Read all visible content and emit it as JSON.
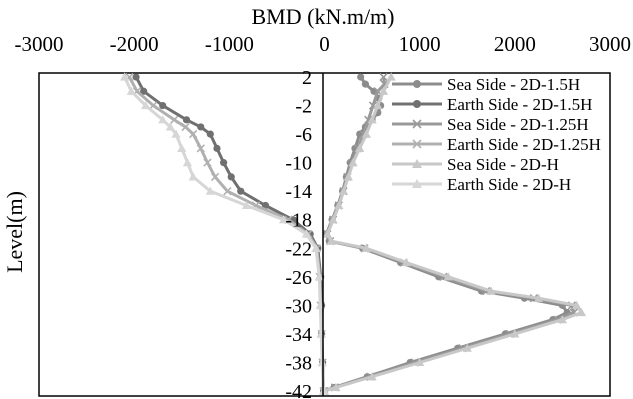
{
  "chart_data": {
    "type": "line",
    "title": "BMD (kN.m/m)",
    "xlabel": "BMD (kN.m/m)",
    "ylabel": "Level(m)",
    "xlim": [
      -3000,
      3000
    ],
    "ylim": [
      -42,
      4
    ],
    "x_ticks": [
      "-3000",
      "-2000",
      "-1000",
      "0",
      "1000",
      "2000",
      "3000"
    ],
    "y_ticks": [
      "2",
      "-2",
      "-6",
      "-10",
      "-14",
      "-18",
      "-22",
      "-26",
      "-30",
      "-34",
      "-38",
      "-42"
    ],
    "grid": false,
    "legend_position": "top-right",
    "series": [
      {
        "name": "Sea Side - 2D-1.5H",
        "color": "#8c8c8c",
        "marker": "circle",
        "points": [
          [
            380,
            2
          ],
          [
            430,
            1
          ],
          [
            520,
            0
          ],
          [
            570,
            -1
          ],
          [
            590,
            -2
          ],
          [
            560,
            -3
          ],
          [
            500,
            -4
          ],
          [
            430,
            -5
          ],
          [
            370,
            -6
          ],
          [
            320,
            -8
          ],
          [
            270,
            -10
          ],
          [
            230,
            -12
          ],
          [
            190,
            -14
          ],
          [
            140,
            -16
          ],
          [
            80,
            -18
          ],
          [
            20,
            -20
          ],
          [
            50,
            -21
          ],
          [
            400,
            -22
          ],
          [
            800,
            -24
          ],
          [
            1200,
            -26
          ],
          [
            1650,
            -28
          ],
          [
            2100,
            -29
          ],
          [
            2500,
            -30
          ],
          [
            2550,
            -31
          ],
          [
            2400,
            -32
          ],
          [
            1900,
            -34
          ],
          [
            1400,
            -36
          ],
          [
            900,
            -38
          ],
          [
            450,
            -40
          ],
          [
            100,
            -41.5
          ],
          [
            0,
            -42
          ]
        ]
      },
      {
        "name": "Earth Side - 2D-1.5H",
        "color": "#707070",
        "marker": "circle",
        "points": [
          [
            -1980,
            2
          ],
          [
            -1900,
            0
          ],
          [
            -1700,
            -2
          ],
          [
            -1450,
            -4
          ],
          [
            -1300,
            -5
          ],
          [
            -1200,
            -6
          ],
          [
            -1130,
            -8
          ],
          [
            -1060,
            -10
          ],
          [
            -980,
            -12
          ],
          [
            -880,
            -14
          ],
          [
            -620,
            -16
          ],
          [
            -330,
            -18
          ],
          [
            -150,
            -20
          ],
          [
            -70,
            -22
          ],
          [
            -40,
            -26
          ],
          [
            -30,
            -30
          ],
          [
            -30,
            -34
          ],
          [
            -20,
            -38
          ],
          [
            -10,
            -42
          ]
        ]
      },
      {
        "name": "Sea Side - 2D-1.25H",
        "color": "#9a9a9a",
        "marker": "x",
        "points": [
          [
            620,
            2
          ],
          [
            630,
            1
          ],
          [
            560,
            0
          ],
          [
            510,
            -2
          ],
          [
            460,
            -4
          ],
          [
            410,
            -6
          ],
          [
            350,
            -8
          ],
          [
            290,
            -10
          ],
          [
            240,
            -12
          ],
          [
            200,
            -14
          ],
          [
            150,
            -16
          ],
          [
            90,
            -18
          ],
          [
            30,
            -20
          ],
          [
            60,
            -21
          ],
          [
            420,
            -22
          ],
          [
            830,
            -24
          ],
          [
            1250,
            -26
          ],
          [
            1700,
            -28
          ],
          [
            2200,
            -29
          ],
          [
            2600,
            -30
          ],
          [
            2620,
            -31
          ],
          [
            2450,
            -32
          ],
          [
            1950,
            -34
          ],
          [
            1450,
            -36
          ],
          [
            950,
            -38
          ],
          [
            480,
            -40
          ],
          [
            110,
            -41.5
          ],
          [
            0,
            -42
          ]
        ]
      },
      {
        "name": "Earth Side - 2D-1.25H",
        "color": "#b0b0b0",
        "marker": "x",
        "points": [
          [
            -2050,
            2
          ],
          [
            -1970,
            0
          ],
          [
            -1800,
            -2
          ],
          [
            -1580,
            -4
          ],
          [
            -1460,
            -5
          ],
          [
            -1380,
            -6
          ],
          [
            -1300,
            -8
          ],
          [
            -1230,
            -10
          ],
          [
            -1150,
            -12
          ],
          [
            -1020,
            -14
          ],
          [
            -720,
            -16
          ],
          [
            -380,
            -18
          ],
          [
            -170,
            -20
          ],
          [
            -80,
            -22
          ],
          [
            -50,
            -26
          ],
          [
            -40,
            -30
          ],
          [
            -30,
            -34
          ],
          [
            -20,
            -38
          ],
          [
            -10,
            -42
          ]
        ]
      },
      {
        "name": "Sea Side - 2D-H",
        "color": "#c8c8c8",
        "marker": "triangle",
        "points": [
          [
            700,
            2
          ],
          [
            620,
            0
          ],
          [
            560,
            -2
          ],
          [
            500,
            -4
          ],
          [
            440,
            -6
          ],
          [
            370,
            -8
          ],
          [
            300,
            -10
          ],
          [
            250,
            -12
          ],
          [
            200,
            -14
          ],
          [
            150,
            -16
          ],
          [
            90,
            -18
          ],
          [
            30,
            -20
          ],
          [
            70,
            -21
          ],
          [
            440,
            -22
          ],
          [
            860,
            -24
          ],
          [
            1300,
            -26
          ],
          [
            1750,
            -28
          ],
          [
            2250,
            -29
          ],
          [
            2650,
            -30
          ],
          [
            2700,
            -31
          ],
          [
            2500,
            -32
          ],
          [
            2000,
            -34
          ],
          [
            1500,
            -36
          ],
          [
            1000,
            -38
          ],
          [
            500,
            -40
          ],
          [
            120,
            -41.5
          ],
          [
            0,
            -42
          ]
        ]
      },
      {
        "name": "Earth Side - 2D-H",
        "color": "#d6d6d6",
        "marker": "triangle",
        "points": [
          [
            -2100,
            2
          ],
          [
            -2030,
            0
          ],
          [
            -1880,
            -2
          ],
          [
            -1700,
            -4
          ],
          [
            -1620,
            -5
          ],
          [
            -1560,
            -6
          ],
          [
            -1500,
            -8
          ],
          [
            -1440,
            -10
          ],
          [
            -1380,
            -12
          ],
          [
            -1200,
            -14
          ],
          [
            -820,
            -16
          ],
          [
            -430,
            -18
          ],
          [
            -190,
            -20
          ],
          [
            -90,
            -22
          ],
          [
            -55,
            -26
          ],
          [
            -45,
            -30
          ],
          [
            -35,
            -34
          ],
          [
            -25,
            -38
          ],
          [
            -10,
            -42
          ]
        ]
      }
    ]
  }
}
